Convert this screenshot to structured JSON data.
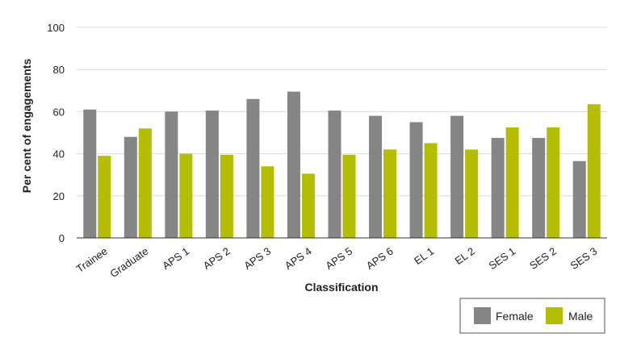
{
  "chart_data": {
    "type": "bar",
    "title": "",
    "xlabel": "Classification",
    "ylabel": "Per cent of engagements",
    "ylim": [
      0,
      100
    ],
    "yticks": [
      0,
      20,
      40,
      60,
      80,
      100
    ],
    "grid": true,
    "legend_position": "bottom-right",
    "categories": [
      "Trainee",
      "Graduate",
      "APS 1",
      "APS 2",
      "APS 3",
      "APS 4",
      "APS 5",
      "APS 6",
      "EL 1",
      "EL 2",
      "SES 1",
      "SES 2",
      "SES 3"
    ],
    "series": [
      {
        "name": "Female",
        "color": "#858585",
        "values": [
          61,
          48,
          60,
          60.5,
          66,
          69.5,
          60.5,
          58,
          55,
          58,
          47.5,
          47.5,
          36.5
        ]
      },
      {
        "name": "Male",
        "color": "#b5bd00",
        "values": [
          39,
          52,
          40,
          39.5,
          34,
          30.5,
          39.5,
          42,
          45,
          42,
          52.5,
          52.5,
          63.5
        ]
      }
    ]
  }
}
